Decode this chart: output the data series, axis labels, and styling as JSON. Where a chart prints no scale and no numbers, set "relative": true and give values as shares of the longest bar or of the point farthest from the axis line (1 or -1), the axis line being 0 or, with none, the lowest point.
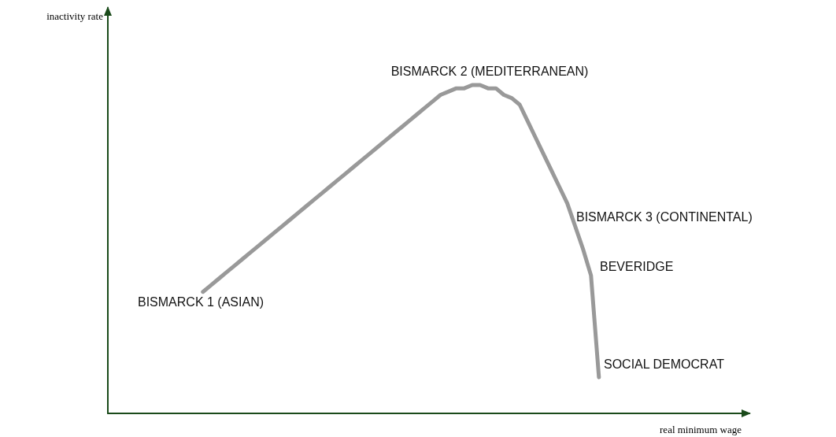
{
  "chart_data": {
    "type": "line",
    "relative": true,
    "xlabel": "real minimum wage",
    "marker": "none",
    "line_style": "solid",
    "categories": [
      null,
      null,
      null,
      null,
      null,
      null,
      null,
      null,
      null,
      null,
      null,
      null,
      null,
      null,
      null,
      null,
      null,
      null,
      null,
      null,
      null,
      null,
      null,
      null,
      null,
      null,
      null,
      null,
      null,
      null,
      null,
      null,
      null,
      null,
      null,
      null,
      null,
      null,
      null,
      null,
      null,
      null,
      null,
      null,
      null,
      null,
      null,
      null,
      null,
      null,
      null,
      null,
      null,
      null,
      null,
      null,
      null,
      null,
      null,
      null,
      null,
      null,
      null,
      null,
      null,
      null,
      null,
      null,
      null,
      null,
      null,
      null,
      null,
      null,
      null,
      null,
      null,
      null,
      null,
      null,
      null,
      null
    ],
    "series": [
      {
        "color": "#999999",
        "values": [
          null,
          null,
          null,
          null,
          null,
          null,
          null,
          null,
          null,
          null,
          null,
          null,
          0.37,
          0.39,
          0.41,
          0.43,
          0.45,
          0.47,
          0.49,
          0.51,
          0.53,
          0.55,
          0.57,
          0.59,
          0.61,
          0.63,
          0.65,
          0.67,
          0.69,
          0.71,
          0.73,
          0.75,
          0.77,
          0.79,
          0.81,
          0.83,
          0.85,
          0.87,
          0.89,
          0.91,
          0.93,
          0.95,
          0.97,
          0.98,
          0.99,
          0.99,
          1.0,
          1.0,
          0.99,
          0.99,
          0.97,
          0.96,
          0.94,
          0.89,
          0.84,
          0.79,
          0.74,
          0.69,
          0.64,
          0.57,
          0.5,
          0.42,
          0.11,
          null,
          null,
          null,
          null,
          null,
          null,
          null,
          null,
          null,
          null,
          null,
          null,
          null,
          null,
          null,
          null,
          null,
          null,
          null
        ]
      }
    ],
    "annotations": [
      "inactivity rate",
      "BISMARCK 1 (ASIAN)",
      "BISMARCK 2 (MEDITERRANEAN)",
      "BISMARCK 3 (CONTINENTAL)",
      "BEVERIDGE",
      "SOCIAL DEMOCRAT"
    ]
  }
}
